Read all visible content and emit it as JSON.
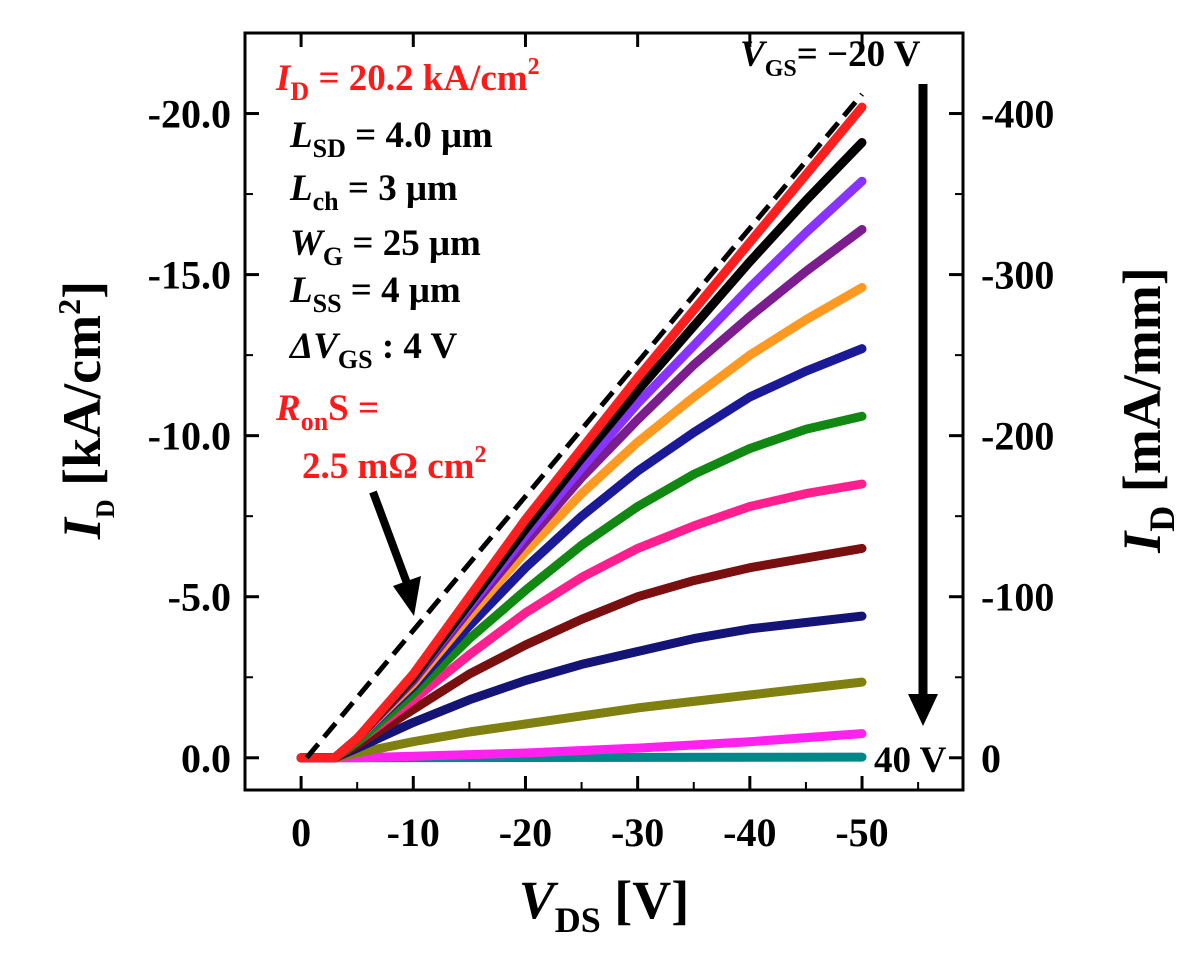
{
  "chart_data": {
    "type": "line",
    "x_axis": {
      "label_main": "V",
      "label_sub": "DS",
      "label_unit": " [V]",
      "range": [
        5,
        -59
      ],
      "ticks": [
        0,
        -10,
        -20,
        -30,
        -40,
        -50
      ],
      "tick_labels": [
        "0",
        "-10",
        "-20",
        "-30",
        "-40",
        "-50"
      ]
    },
    "y_axis_left": {
      "label_main": "I",
      "label_sub": "D",
      "label_unit": " [kA/cm",
      "label_sup": "2",
      "label_close": "]",
      "range": [
        1.0,
        -22.5
      ],
      "ticks": [
        0,
        -5,
        -10,
        -15,
        -20
      ],
      "tick_labels": [
        "0.0",
        "-5.0",
        "-10.0",
        "-15.0",
        "-20.0"
      ]
    },
    "y_axis_right": {
      "label_main": "I",
      "label_sub": "D",
      "label_unit": " [mA/mm]",
      "ticks": [
        0,
        -100,
        -200,
        -300,
        -400
      ],
      "tick_labels": [
        "0",
        "-100",
        "-200",
        "-300",
        "-400"
      ]
    },
    "series": [
      {
        "color": "#ff1f1f",
        "values": [
          [
            0,
            0
          ],
          [
            -3,
            0
          ],
          [
            -5,
            -0.6
          ],
          [
            -10,
            -2.6
          ],
          [
            -15,
            -5
          ],
          [
            -20,
            -7.4
          ],
          [
            -25,
            -9.6
          ],
          [
            -30,
            -11.8
          ],
          [
            -35,
            -13.9
          ],
          [
            -40,
            -16
          ],
          [
            -45,
            -18.1
          ],
          [
            -50,
            -20.2
          ]
        ]
      },
      {
        "color": "#000000",
        "values": [
          [
            0,
            0
          ],
          [
            -3,
            0
          ],
          [
            -5,
            -0.6
          ],
          [
            -10,
            -2.5
          ],
          [
            -15,
            -4.8
          ],
          [
            -20,
            -7.1
          ],
          [
            -25,
            -9.3
          ],
          [
            -30,
            -11.4
          ],
          [
            -35,
            -13.4
          ],
          [
            -40,
            -15.4
          ],
          [
            -45,
            -17.3
          ],
          [
            -50,
            -19.1
          ]
        ]
      },
      {
        "color": "#8833ff",
        "values": [
          [
            0,
            0
          ],
          [
            -3,
            0
          ],
          [
            -5,
            -0.6
          ],
          [
            -10,
            -2.5
          ],
          [
            -15,
            -4.7
          ],
          [
            -20,
            -6.9
          ],
          [
            -25,
            -9
          ],
          [
            -30,
            -11
          ],
          [
            -35,
            -12.8
          ],
          [
            -40,
            -14.6
          ],
          [
            -45,
            -16.3
          ],
          [
            -50,
            -17.9
          ]
        ]
      },
      {
        "color": "#7b1c8f",
        "values": [
          [
            0,
            0
          ],
          [
            -3,
            0
          ],
          [
            -5,
            -0.6
          ],
          [
            -10,
            -2.4
          ],
          [
            -15,
            -4.6
          ],
          [
            -20,
            -6.7
          ],
          [
            -25,
            -8.7
          ],
          [
            -30,
            -10.5
          ],
          [
            -35,
            -12.2
          ],
          [
            -40,
            -13.7
          ],
          [
            -45,
            -15.1
          ],
          [
            -50,
            -16.4
          ]
        ]
      },
      {
        "color": "#ff9922",
        "values": [
          [
            0,
            0
          ],
          [
            -3,
            0
          ],
          [
            -5,
            -0.6
          ],
          [
            -10,
            -2.3
          ],
          [
            -15,
            -4.4
          ],
          [
            -20,
            -6.4
          ],
          [
            -25,
            -8.2
          ],
          [
            -30,
            -9.8
          ],
          [
            -35,
            -11.2
          ],
          [
            -40,
            -12.5
          ],
          [
            -45,
            -13.6
          ],
          [
            -50,
            -14.6
          ]
        ]
      },
      {
        "color": "#1a1a99",
        "values": [
          [
            0,
            0
          ],
          [
            -3,
            0
          ],
          [
            -5,
            -0.6
          ],
          [
            -10,
            -2.2
          ],
          [
            -15,
            -4.1
          ],
          [
            -20,
            -5.9
          ],
          [
            -25,
            -7.5
          ],
          [
            -30,
            -8.9
          ],
          [
            -35,
            -10.1
          ],
          [
            -40,
            -11.2
          ],
          [
            -45,
            -12
          ],
          [
            -50,
            -12.7
          ]
        ]
      },
      {
        "color": "#118811",
        "values": [
          [
            0,
            0
          ],
          [
            -3,
            0
          ],
          [
            -5,
            -0.5
          ],
          [
            -10,
            -2
          ],
          [
            -15,
            -3.7
          ],
          [
            -20,
            -5.2
          ],
          [
            -25,
            -6.6
          ],
          [
            -30,
            -7.8
          ],
          [
            -35,
            -8.8
          ],
          [
            -40,
            -9.6
          ],
          [
            -45,
            -10.2
          ],
          [
            -50,
            -10.6
          ]
        ]
      },
      {
        "color": "#ff1f8f",
        "values": [
          [
            0,
            0
          ],
          [
            -3,
            0
          ],
          [
            -5,
            -0.5
          ],
          [
            -10,
            -1.8
          ],
          [
            -15,
            -3.2
          ],
          [
            -20,
            -4.5
          ],
          [
            -25,
            -5.6
          ],
          [
            -30,
            -6.5
          ],
          [
            -35,
            -7.2
          ],
          [
            -40,
            -7.8
          ],
          [
            -45,
            -8.2
          ],
          [
            -50,
            -8.5
          ]
        ]
      },
      {
        "color": "#7a0f0f",
        "values": [
          [
            0,
            0
          ],
          [
            -3,
            0
          ],
          [
            -5,
            -0.4
          ],
          [
            -10,
            -1.5
          ],
          [
            -15,
            -2.6
          ],
          [
            -20,
            -3.5
          ],
          [
            -25,
            -4.3
          ],
          [
            -30,
            -5
          ],
          [
            -35,
            -5.5
          ],
          [
            -40,
            -5.9
          ],
          [
            -45,
            -6.2
          ],
          [
            -50,
            -6.5
          ]
        ]
      },
      {
        "color": "#141477",
        "values": [
          [
            0,
            0
          ],
          [
            -3,
            0
          ],
          [
            -5,
            -0.3
          ],
          [
            -10,
            -1.1
          ],
          [
            -15,
            -1.8
          ],
          [
            -20,
            -2.4
          ],
          [
            -25,
            -2.9
          ],
          [
            -30,
            -3.3
          ],
          [
            -35,
            -3.7
          ],
          [
            -40,
            -4
          ],
          [
            -45,
            -4.2
          ],
          [
            -50,
            -4.4
          ]
        ]
      },
      {
        "color": "#808011",
        "values": [
          [
            0,
            0
          ],
          [
            -3,
            0
          ],
          [
            -5,
            -0.15
          ],
          [
            -10,
            -0.5
          ],
          [
            -15,
            -0.8
          ],
          [
            -20,
            -1.05
          ],
          [
            -25,
            -1.3
          ],
          [
            -30,
            -1.55
          ],
          [
            -35,
            -1.75
          ],
          [
            -40,
            -1.95
          ],
          [
            -45,
            -2.15
          ],
          [
            -50,
            -2.35
          ]
        ]
      },
      {
        "color": "#ff22ee",
        "values": [
          [
            0,
            0
          ],
          [
            -5,
            0
          ],
          [
            -10,
            -0.05
          ],
          [
            -20,
            -0.15
          ],
          [
            -30,
            -0.3
          ],
          [
            -40,
            -0.5
          ],
          [
            -50,
            -0.75
          ]
        ]
      },
      {
        "color": "#008888",
        "values": [
          [
            0,
            0
          ],
          [
            -50,
            -0.02
          ]
        ]
      }
    ],
    "fit_line": {
      "style": "dashed",
      "color": "#000000",
      "values": [
        [
          -0.5,
          0
        ],
        [
          -50,
          -20.6
        ]
      ]
    },
    "annotations": {
      "id_main": "I",
      "id_sub": "D",
      "id_rest": " = 20.2 kA/cm",
      "id_sup": "2",
      "lsd_main": "L",
      "lsd_sub": "SD",
      "lsd_rest": " = 4.0 μm",
      "lch_main": "L",
      "lch_sub": "ch",
      "lch_rest": " = 3 μm",
      "wg_main": "W",
      "wg_sub": "G",
      "wg_rest": " = 25 μm",
      "lss_main": "L",
      "lss_sub": "SS",
      "lss_rest": " = 4 μm",
      "dvgs_main": "ΔV",
      "dvgs_sub": "GS",
      "dvgs_rest": " : 4 V",
      "ron_main": "R",
      "ron_sub": "on",
      "ron_rest": "S =",
      "ron_value": "2.5 mΩ cm",
      "ron_sup": "2",
      "vgs_top_main": "V",
      "vgs_top_sub": "GS",
      "vgs_top_rest": "= −20 V",
      "vgs_bottom": "40 V"
    }
  }
}
